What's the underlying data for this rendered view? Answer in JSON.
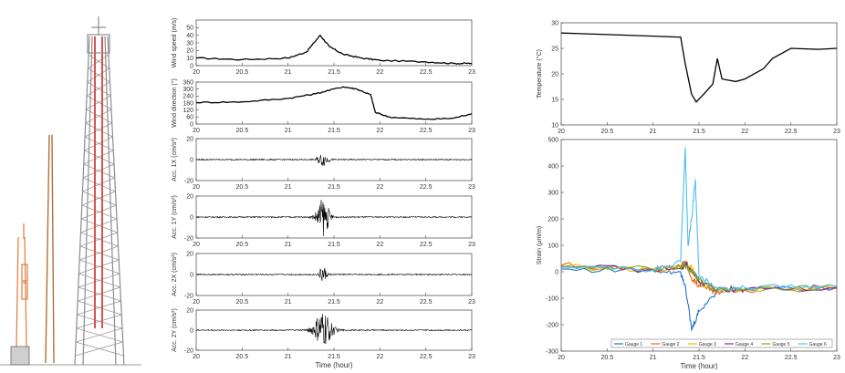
{
  "colors": {
    "tower_steel": "#8c8c8c",
    "tower_highlight": "#d9534f",
    "trace": "#000000",
    "gauges": [
      "#1f77d0",
      "#e8671c",
      "#f2b705",
      "#7e2f8e",
      "#77ac30",
      "#4dbeee"
    ]
  },
  "chart_data": [
    {
      "type": "line",
      "panel": "wind-speed",
      "ylabel": "Wind speed (m/s)",
      "xlim": [
        20,
        23
      ],
      "ylim": [
        0,
        60
      ],
      "xticks": [
        "20",
        "20.5",
        "21",
        "21.5",
        "22",
        "22.5",
        "23"
      ],
      "yticks": [
        "0",
        "10",
        "20",
        "30",
        "40",
        "50"
      ],
      "series": [
        {
          "x": [
            20,
            20.5,
            21,
            21.2,
            21.35,
            21.45,
            21.6,
            21.8,
            22,
            22.5,
            22.8,
            23
          ],
          "values": [
            10,
            8,
            10,
            18,
            40,
            25,
            15,
            10,
            7,
            5,
            3,
            3
          ]
        }
      ]
    },
    {
      "type": "line",
      "panel": "wind-direction",
      "ylabel": "Wind direction (°)",
      "xlim": [
        20,
        23
      ],
      "ylim": [
        0,
        360
      ],
      "yticks": [
        "0",
        "60",
        "120",
        "180",
        "240",
        "300",
        "360"
      ],
      "series": [
        {
          "x": [
            20,
            20.5,
            21,
            21.3,
            21.6,
            21.75,
            21.9,
            21.95,
            22.1,
            22.5,
            22.8,
            23
          ],
          "values": [
            185,
            190,
            220,
            260,
            320,
            300,
            250,
            100,
            60,
            40,
            50,
            90
          ]
        }
      ]
    },
    {
      "type": "line",
      "panel": "acc-1x",
      "ylabel": "Acc. 1X (cm/s²)",
      "xlim": [
        20,
        23
      ],
      "ylim": [
        -20,
        20
      ],
      "yticks": [
        "-20",
        "0",
        "20"
      ],
      "burst": {
        "center": 21.38,
        "width": 0.12,
        "amplitude": 6
      }
    },
    {
      "type": "line",
      "panel": "acc-1y",
      "ylabel": "Acc. 1Y (cm/s²)",
      "xlim": [
        20,
        23
      ],
      "ylim": [
        -20,
        20
      ],
      "yticks": [
        "-20",
        "0",
        "20"
      ],
      "burst": {
        "center": 21.38,
        "width": 0.14,
        "amplitude": 18
      }
    },
    {
      "type": "line",
      "panel": "acc-2x",
      "ylabel": "Acc. 2X (cm/s²)",
      "xlim": [
        20,
        23
      ],
      "ylim": [
        -20,
        20
      ],
      "yticks": [
        "-20",
        "0",
        "20"
      ],
      "burst": {
        "center": 21.38,
        "width": 0.08,
        "amplitude": 8
      }
    },
    {
      "type": "line",
      "panel": "acc-2y",
      "ylabel": "Acc. 2Y (cm/s²)",
      "xlabel": "Time (hour)",
      "xlim": [
        20,
        23
      ],
      "ylim": [
        -20,
        20
      ],
      "xticks": [
        "20",
        "20.5",
        "21",
        "21.5",
        "22",
        "22.5",
        "23"
      ],
      "yticks": [
        "-20",
        "0",
        "20"
      ],
      "burst": {
        "center": 21.38,
        "width": 0.2,
        "amplitude": 18
      }
    },
    {
      "type": "line",
      "panel": "temperature",
      "ylabel": "Temperature (°C)",
      "xlim": [
        20,
        23
      ],
      "ylim": [
        10,
        30
      ],
      "xticks": [
        "20",
        "20.5",
        "21",
        "21.5",
        "22",
        "22.5",
        "23"
      ],
      "yticks": [
        "10",
        "15",
        "20",
        "25",
        "30"
      ],
      "series": [
        {
          "x": [
            20,
            20.5,
            21,
            21.3,
            21.35,
            21.42,
            21.47,
            21.55,
            21.65,
            21.7,
            21.75,
            21.9,
            22,
            22.2,
            22.3,
            22.5,
            22.8,
            23
          ],
          "values": [
            28,
            27.7,
            27.4,
            27.2,
            22,
            16,
            14.5,
            16,
            18,
            23,
            19,
            18.5,
            19,
            21,
            23,
            25,
            24.8,
            25
          ]
        }
      ]
    },
    {
      "type": "line",
      "panel": "strain",
      "ylabel": "Strain (μm/m)",
      "xlabel": "Time (hour)",
      "xlim": [
        20,
        23
      ],
      "ylim": [
        -300,
        500
      ],
      "xticks": [
        "20",
        "20.5",
        "21",
        "21.5",
        "22",
        "22.5",
        "23"
      ],
      "yticks": [
        "-300",
        "-200",
        "-100",
        "0",
        "100",
        "200",
        "300",
        "400",
        "500"
      ],
      "legend": "bottom",
      "series": [
        {
          "name": "Gauge 1",
          "x": [
            20,
            21,
            21.3,
            21.35,
            21.42,
            21.5,
            21.7,
            22,
            23
          ],
          "values": [
            10,
            5,
            0,
            -50,
            -220,
            -150,
            -70,
            -65,
            -60
          ]
        },
        {
          "name": "Gauge 2",
          "x": [
            20,
            21,
            21.3,
            21.35,
            21.42,
            21.5,
            21.7,
            22,
            23
          ],
          "values": [
            25,
            10,
            20,
            40,
            -30,
            -50,
            -75,
            -70,
            -65
          ]
        },
        {
          "name": "Gauge 3",
          "x": [
            20,
            21,
            21.3,
            21.35,
            21.42,
            21.5,
            21.7,
            22,
            23
          ],
          "values": [
            20,
            8,
            15,
            30,
            10,
            -40,
            -70,
            -68,
            -62
          ]
        },
        {
          "name": "Gauge 4",
          "x": [
            20,
            21,
            21.3,
            21.35,
            21.42,
            21.5,
            21.7,
            22,
            23
          ],
          "values": [
            18,
            7,
            12,
            35,
            5,
            -35,
            -65,
            -66,
            -60
          ]
        },
        {
          "name": "Gauge 5",
          "x": [
            20,
            21,
            21.3,
            21.35,
            21.42,
            21.5,
            21.7,
            22,
            23
          ],
          "values": [
            22,
            9,
            18,
            25,
            0,
            -30,
            -72,
            -70,
            -58
          ]
        },
        {
          "name": "Gauge 6",
          "x": [
            20,
            21,
            21.3,
            21.35,
            21.38,
            21.42,
            21.46,
            21.5,
            21.7,
            22,
            23
          ],
          "values": [
            15,
            6,
            40,
            470,
            100,
            200,
            350,
            -20,
            -60,
            -60,
            -55
          ]
        }
      ]
    }
  ]
}
